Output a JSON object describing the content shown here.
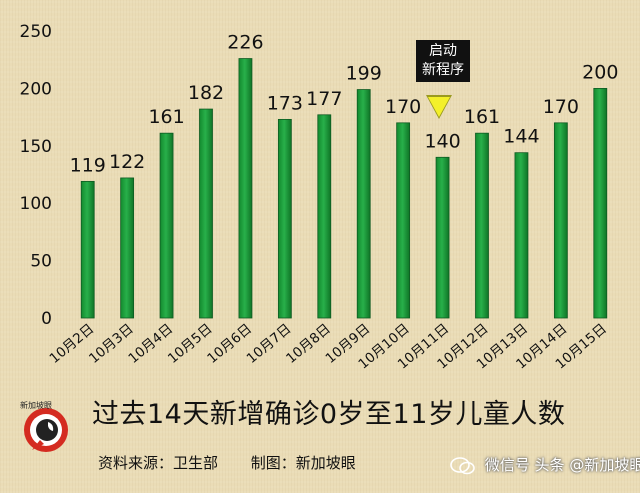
{
  "chart_data": {
    "type": "bar",
    "title": "过去14天新增确诊0岁至11岁儿童人数",
    "categories": [
      "10月2日",
      "10月3日",
      "10月4日",
      "10月5日",
      "10月6日",
      "10月7日",
      "10月8日",
      "10月9日",
      "10月10日",
      "10月11日",
      "10月12日",
      "10月13日",
      "10月14日",
      "10月15日"
    ],
    "values": [
      119,
      122,
      161,
      182,
      226,
      173,
      177,
      199,
      170,
      140,
      161,
      144,
      170,
      200
    ],
    "ylim": [
      0,
      250
    ],
    "yticks": [
      0,
      50,
      100,
      150,
      200,
      250
    ],
    "xlabel": "",
    "ylabel": "",
    "grid": false,
    "bar_color": "#1e9a3c",
    "annotations": [
      {
        "category": "10月11日",
        "lines": [
          "启动",
          "新程序"
        ]
      }
    ]
  },
  "credits": {
    "source": "资料来源：卫生部",
    "maker": "制图：新加坡眼"
  },
  "logo": {
    "text": "新加坡眼"
  },
  "watermark": {
    "text": "微信号 头条 @新加坡眼"
  },
  "colors": {
    "bar": "#1e9a3c",
    "bar_edge": "#0f5a22",
    "callout_bg": "#111111",
    "arrow": "#f3f02a",
    "logo_red": "#d42b20"
  }
}
